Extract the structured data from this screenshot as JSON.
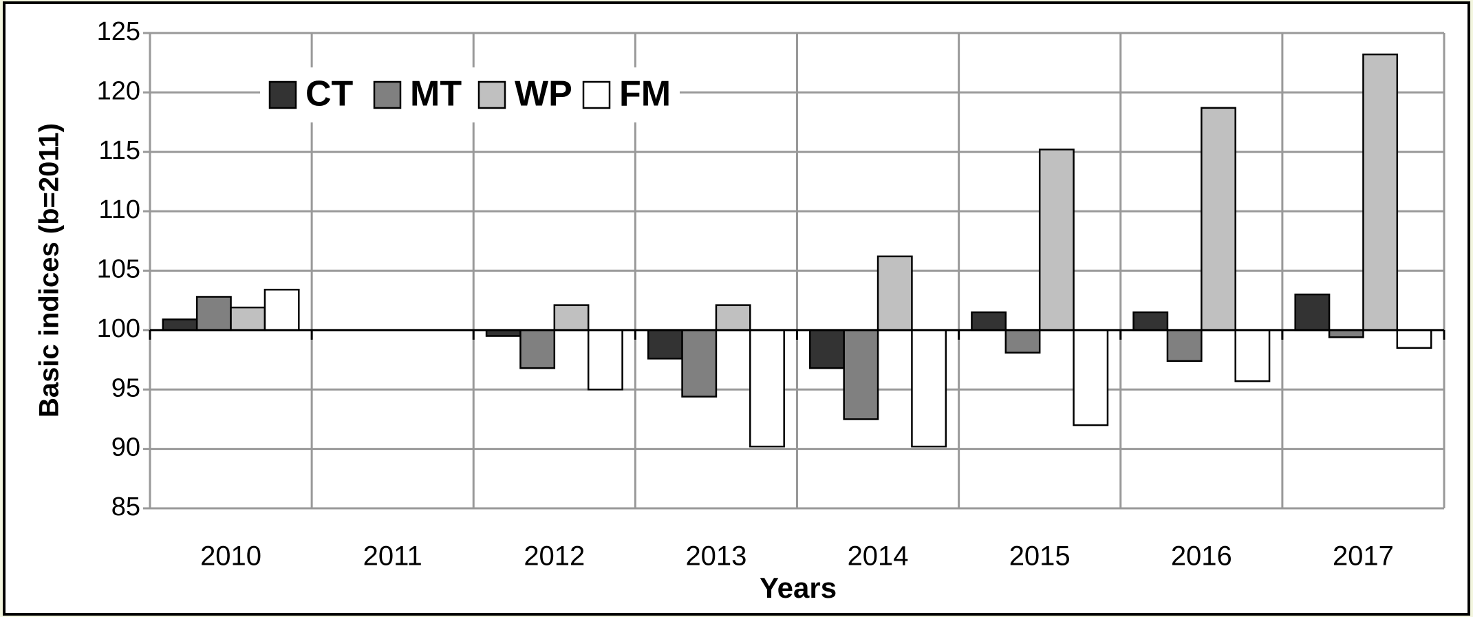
{
  "chart_data": {
    "type": "bar",
    "x_label": "Years",
    "y_label": "Basic indices (b=2011)",
    "categories": [
      "2010",
      "2011",
      "2012",
      "2013",
      "2014",
      "2015",
      "2016",
      "2017"
    ],
    "series": [
      {
        "name": "CT",
        "color": "#333333",
        "values": [
          100.9,
          100,
          99.5,
          97.6,
          96.8,
          101.5,
          101.5,
          103.0
        ]
      },
      {
        "name": "MT",
        "color": "#808080",
        "values": [
          102.8,
          100,
          96.8,
          94.4,
          92.5,
          98.1,
          97.4,
          99.4
        ]
      },
      {
        "name": "WP",
        "color": "#c0c0c0",
        "values": [
          101.9,
          100,
          102.1,
          102.1,
          106.2,
          115.2,
          118.7,
          123.2
        ]
      },
      {
        "name": "FM",
        "color": "#ffffff",
        "values": [
          103.4,
          100,
          95.0,
          90.2,
          90.2,
          92.0,
          95.7,
          98.5
        ]
      }
    ],
    "baseline": 100,
    "ylim": [
      85,
      125
    ],
    "yticks": [
      85,
      90,
      95,
      100,
      105,
      110,
      115,
      120,
      125
    ],
    "grid": true,
    "legend": "top-left"
  }
}
